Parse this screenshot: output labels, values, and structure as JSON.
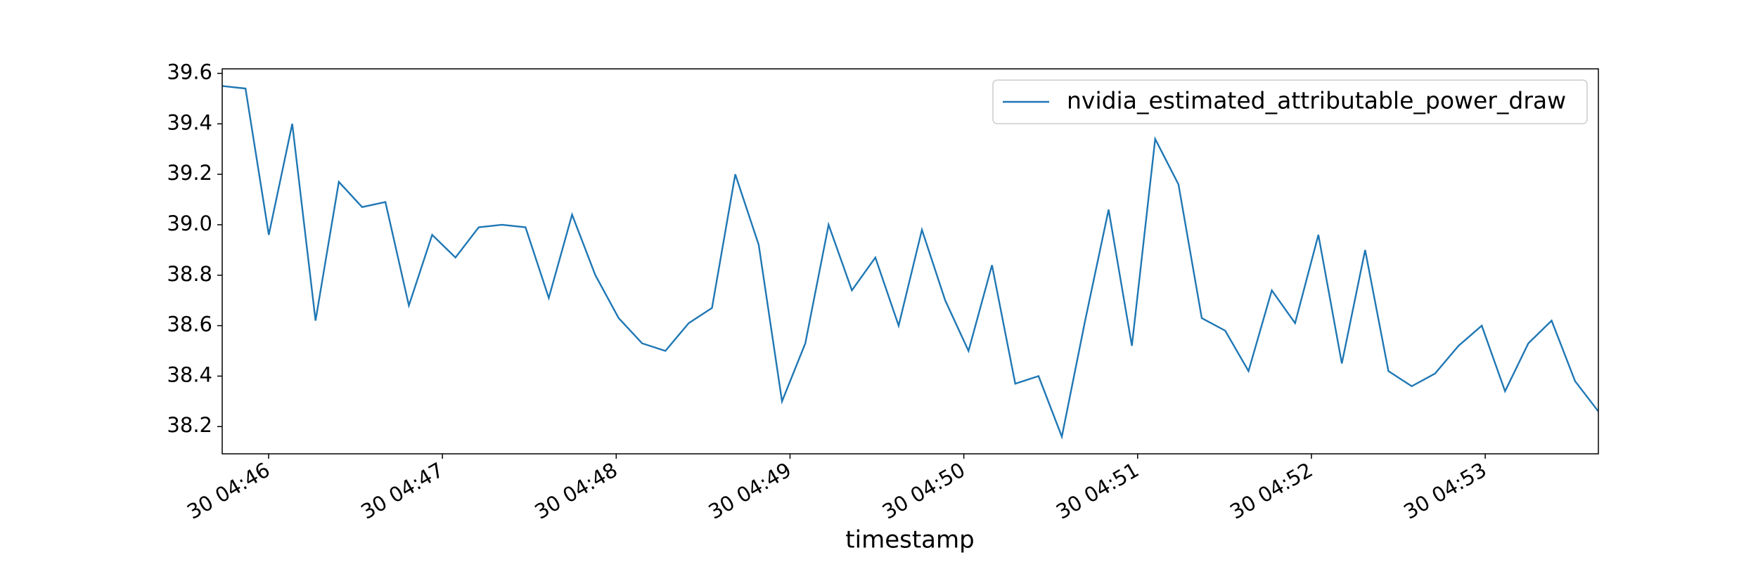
{
  "chart_data": {
    "type": "line",
    "xlabel": "timestamp",
    "legend": "upper right",
    "x": [
      45.733,
      45.867,
      46.001,
      46.136,
      46.27,
      46.404,
      46.538,
      46.672,
      46.807,
      46.941,
      47.075,
      47.209,
      47.343,
      47.478,
      47.612,
      47.746,
      47.88,
      48.014,
      48.149,
      48.283,
      48.417,
      48.551,
      48.685,
      48.82,
      48.954,
      49.088,
      49.222,
      49.356,
      49.491,
      49.625,
      49.759,
      49.893,
      50.027,
      50.162,
      50.296,
      50.43,
      50.564,
      50.698,
      50.833,
      50.967,
      51.101,
      51.235,
      51.369,
      51.504,
      51.638,
      51.772,
      51.906,
      52.04,
      52.175,
      52.309,
      52.443,
      52.577,
      52.711,
      52.846,
      52.98,
      53.114,
      53.248,
      53.382,
      53.517,
      53.651
    ],
    "series": [
      {
        "name": "nvidia_estimated_attributable_power_draw",
        "color": "#1f77b4",
        "values": [
          39.55,
          39.54,
          38.96,
          39.4,
          38.62,
          39.17,
          39.07,
          39.09,
          38.68,
          38.96,
          38.87,
          38.99,
          39.0,
          38.99,
          38.71,
          39.04,
          38.8,
          38.63,
          38.53,
          38.5,
          38.61,
          38.67,
          39.2,
          38.92,
          38.3,
          38.53,
          39.0,
          38.74,
          38.87,
          38.6,
          38.98,
          38.7,
          38.5,
          38.84,
          38.37,
          38.4,
          38.16,
          38.62,
          39.06,
          38.52,
          39.34,
          39.16,
          38.63,
          38.58,
          38.42,
          38.74,
          38.61,
          38.96,
          38.45,
          38.9,
          38.42,
          38.36,
          38.41,
          38.52,
          38.6,
          38.34,
          38.53,
          38.62,
          38.38,
          38.26
        ]
      }
    ],
    "xlim": [
      45.733,
      53.651
    ],
    "xticks": [
      {
        "value": 46,
        "label": "30 04:46"
      },
      {
        "value": 47,
        "label": "30 04:47"
      },
      {
        "value": 48,
        "label": "30 04:48"
      },
      {
        "value": 49,
        "label": "30 04:49"
      },
      {
        "value": 50,
        "label": "30 04:50"
      },
      {
        "value": 51,
        "label": "30 04:51"
      },
      {
        "value": 52,
        "label": "30 04:52"
      },
      {
        "value": 53,
        "label": "30 04:53"
      }
    ],
    "ylim": [
      38.092,
      39.618
    ],
    "yticks": [
      38.2,
      38.4,
      38.6,
      38.8,
      {
        "value": 39.0,
        "label": "39.0"
      },
      39.2,
      39.4,
      39.6
    ],
    "grid": false
  }
}
